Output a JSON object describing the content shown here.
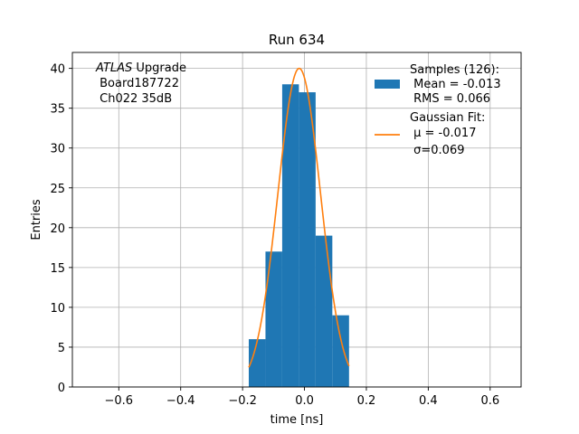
{
  "chart_data": {
    "type": "bar",
    "title": "Run 634",
    "xlabel": "time [ns]",
    "ylabel": "Entries",
    "xlim": [
      -0.75,
      0.7
    ],
    "ylim": [
      0,
      42
    ],
    "grid": true,
    "x_ticks": [
      {
        "value": -0.6,
        "label": "−0.6"
      },
      {
        "value": -0.4,
        "label": "−0.4"
      },
      {
        "value": -0.2,
        "label": "−0.2"
      },
      {
        "value": 0.0,
        "label": "0.0"
      },
      {
        "value": 0.2,
        "label": "0.2"
      },
      {
        "value": 0.4,
        "label": "0.4"
      },
      {
        "value": 0.6,
        "label": "0.6"
      }
    ],
    "y_ticks": [
      {
        "value": 0,
        "label": "0"
      },
      {
        "value": 5,
        "label": "5"
      },
      {
        "value": 10,
        "label": "10"
      },
      {
        "value": 15,
        "label": "15"
      },
      {
        "value": 20,
        "label": "20"
      },
      {
        "value": 25,
        "label": "25"
      },
      {
        "value": 30,
        "label": "30"
      },
      {
        "value": 35,
        "label": "35"
      },
      {
        "value": 40,
        "label": "40"
      }
    ],
    "histogram": {
      "bin_edges": [
        -0.18,
        -0.126,
        -0.072,
        -0.018,
        0.036,
        0.09,
        0.144
      ],
      "counts": [
        6,
        17,
        38,
        37,
        19,
        9
      ],
      "color": "#1f77b4"
    },
    "fit": {
      "mu": -0.017,
      "sigma": 0.069,
      "amplitude": 40,
      "x_range": [
        -0.18,
        0.144
      ],
      "color": "#ff7f0e"
    },
    "annotation": {
      "italic": "ATLAS",
      "line1_rest": " Upgrade",
      "line2": " Board187722",
      "line3": " Ch022 35dB"
    },
    "legend": {
      "placement": "top-right",
      "hist_lines": [
        "Samples (126):",
        " Mean = -0.013",
        " RMS = 0.066"
      ],
      "fit_lines": [
        "Gaussian Fit:",
        " μ = -0.017",
        " σ=0.069"
      ]
    }
  }
}
